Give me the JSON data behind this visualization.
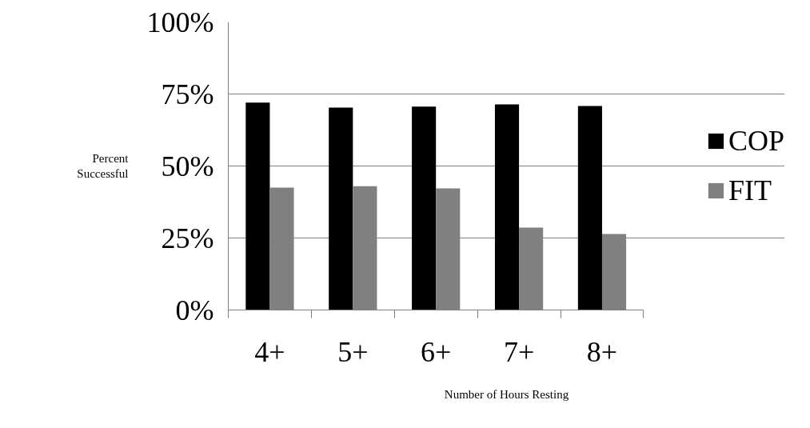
{
  "chart_data": {
    "type": "bar",
    "xlabel": "Number of Hours Resting",
    "ylabel": "Percent Successful",
    "categories": [
      "4+",
      "5+",
      "6+",
      "7+",
      "8+"
    ],
    "series": [
      {
        "name": "COP",
        "color": "#000000",
        "values": [
          72,
          70.3,
          70.6,
          71.4,
          70.8
        ]
      },
      {
        "name": "FIT",
        "color": "#808080",
        "values": [
          42.5,
          43,
          42.2,
          28.6,
          26.4
        ]
      }
    ],
    "ylim": [
      0,
      100
    ],
    "yticks": [
      {
        "value": 0,
        "label": "0%"
      },
      {
        "value": 25,
        "label": "25%"
      },
      {
        "value": 50,
        "label": "50%"
      },
      {
        "value": 75,
        "label": "75%"
      },
      {
        "value": 100,
        "label": "100%"
      }
    ],
    "grid": "y",
    "legend": "right"
  }
}
